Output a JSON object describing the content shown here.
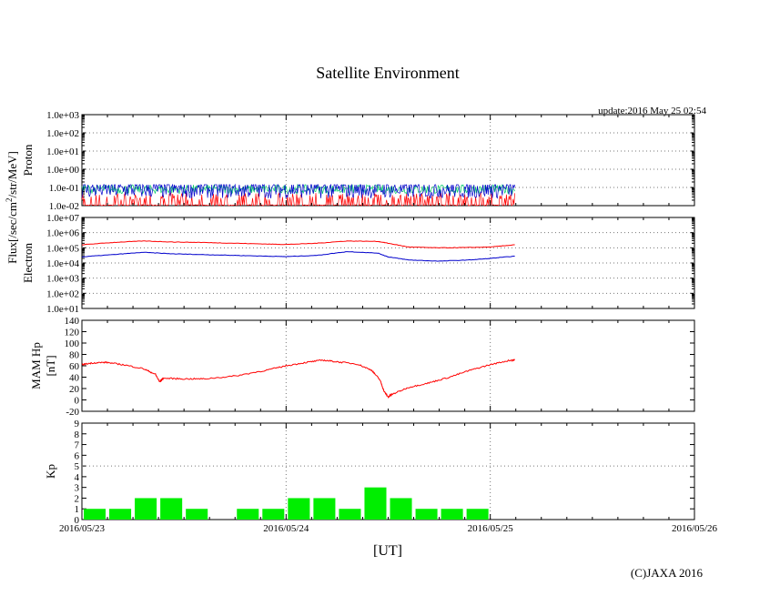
{
  "chart_data": {
    "type": "line",
    "title": "Satellite Environment",
    "update_text": "update:2016 May 25 02:54",
    "copyright": "(C)JAXA 2016",
    "xlabel": "[UT]",
    "x_ticks": [
      "2016/05/23",
      "2016/05/24",
      "2016/05/25",
      "2016/05/26"
    ],
    "x_range_days": [
      0,
      3
    ],
    "shared_ylabel": "Flux[/sec/cm2/str/MeV]",
    "panels": {
      "proton": {
        "ylabel": "Proton",
        "scale": "log",
        "ylim_exp": [
          -2,
          3
        ],
        "tick_labels": [
          "1.0e-02",
          "1.0e-01",
          "1.0e+00",
          "1.0e+01",
          "1.0e+02",
          "1.0e+03"
        ],
        "series": [
          {
            "name": "proton-high-energy",
            "color": "#ff0000",
            "base_exp": -2.0,
            "noise_exp": 0.6
          },
          {
            "name": "proton-mid-energy",
            "color": "#00cc66",
            "base_exp": -1.1,
            "noise_exp": 0.25
          },
          {
            "name": "proton-low-energy",
            "color": "#0000cc",
            "base_exp": -1.1,
            "noise_exp": 0.5
          }
        ],
        "end_day": 2.12
      },
      "electron": {
        "ylabel": "Electron",
        "scale": "log",
        "ylim_exp": [
          1,
          7
        ],
        "tick_labels": [
          "1.0e+01",
          "1.0e+02",
          "1.0e+03",
          "1.0e+04",
          "1.0e+05",
          "1.0e+06",
          "1.0e+07"
        ],
        "series": [
          {
            "name": "electron-red",
            "color": "#ff0000",
            "points": [
              [
                0,
                5.2
              ],
              [
                0.15,
                5.35
              ],
              [
                0.3,
                5.45
              ],
              [
                0.45,
                5.38
              ],
              [
                0.6,
                5.35
              ],
              [
                0.75,
                5.3
              ],
              [
                0.9,
                5.25
              ],
              [
                1.0,
                5.22
              ],
              [
                1.15,
                5.3
              ],
              [
                1.3,
                5.45
              ],
              [
                1.45,
                5.42
              ],
              [
                1.5,
                5.3
              ],
              [
                1.6,
                5.05
              ],
              [
                1.75,
                5.0
              ],
              [
                1.9,
                5.02
              ],
              [
                2.0,
                5.05
              ],
              [
                2.12,
                5.2
              ]
            ]
          },
          {
            "name": "electron-blue",
            "color": "#0000cc",
            "points": [
              [
                0,
                4.4
              ],
              [
                0.15,
                4.55
              ],
              [
                0.3,
                4.7
              ],
              [
                0.45,
                4.6
              ],
              [
                0.6,
                4.55
              ],
              [
                0.75,
                4.5
              ],
              [
                0.9,
                4.45
              ],
              [
                1.0,
                4.42
              ],
              [
                1.15,
                4.5
              ],
              [
                1.3,
                4.75
              ],
              [
                1.45,
                4.65
              ],
              [
                1.5,
                4.4
              ],
              [
                1.6,
                4.2
              ],
              [
                1.75,
                4.12
              ],
              [
                1.9,
                4.2
              ],
              [
                2.0,
                4.3
              ],
              [
                2.12,
                4.45
              ]
            ]
          }
        ]
      },
      "mam": {
        "ylabel_line1": "MAM Hp",
        "ylabel_line2": "[nT]",
        "scale": "linear",
        "ylim": [
          -20,
          140
        ],
        "tick_labels": [
          "-20",
          "0",
          "20",
          "40",
          "60",
          "80",
          "100",
          "120",
          "140"
        ],
        "series": [
          {
            "name": "mam-hp",
            "color": "#ff0000",
            "points": [
              [
                0,
                62
              ],
              [
                0.05,
                65
              ],
              [
                0.12,
                66
              ],
              [
                0.2,
                62
              ],
              [
                0.3,
                55
              ],
              [
                0.36,
                45
              ],
              [
                0.38,
                32
              ],
              [
                0.4,
                38
              ],
              [
                0.5,
                37
              ],
              [
                0.6,
                37
              ],
              [
                0.75,
                42
              ],
              [
                0.9,
                52
              ],
              [
                1.0,
                60
              ],
              [
                1.1,
                66
              ],
              [
                1.18,
                70
              ],
              [
                1.25,
                67
              ],
              [
                1.35,
                63
              ],
              [
                1.42,
                52
              ],
              [
                1.46,
                35
              ],
              [
                1.48,
                15
              ],
              [
                1.5,
                5
              ],
              [
                1.52,
                10
              ],
              [
                1.6,
                22
              ],
              [
                1.7,
                30
              ],
              [
                1.8,
                40
              ],
              [
                1.9,
                52
              ],
              [
                2.0,
                62
              ],
              [
                2.1,
                70
              ],
              [
                2.12,
                70
              ]
            ]
          }
        ]
      },
      "kp": {
        "ylabel": "Kp",
        "scale": "linear",
        "ylim": [
          0,
          9
        ],
        "tick_labels": [
          "0",
          "1",
          "2",
          "3",
          "4",
          "5",
          "6",
          "7",
          "8",
          "9"
        ],
        "bar_color": "#00ee00",
        "bars": [
          1,
          1,
          2,
          2,
          1,
          null,
          1,
          1,
          2,
          2,
          1,
          3,
          2,
          1,
          1,
          1
        ],
        "threshold": 5
      }
    }
  }
}
